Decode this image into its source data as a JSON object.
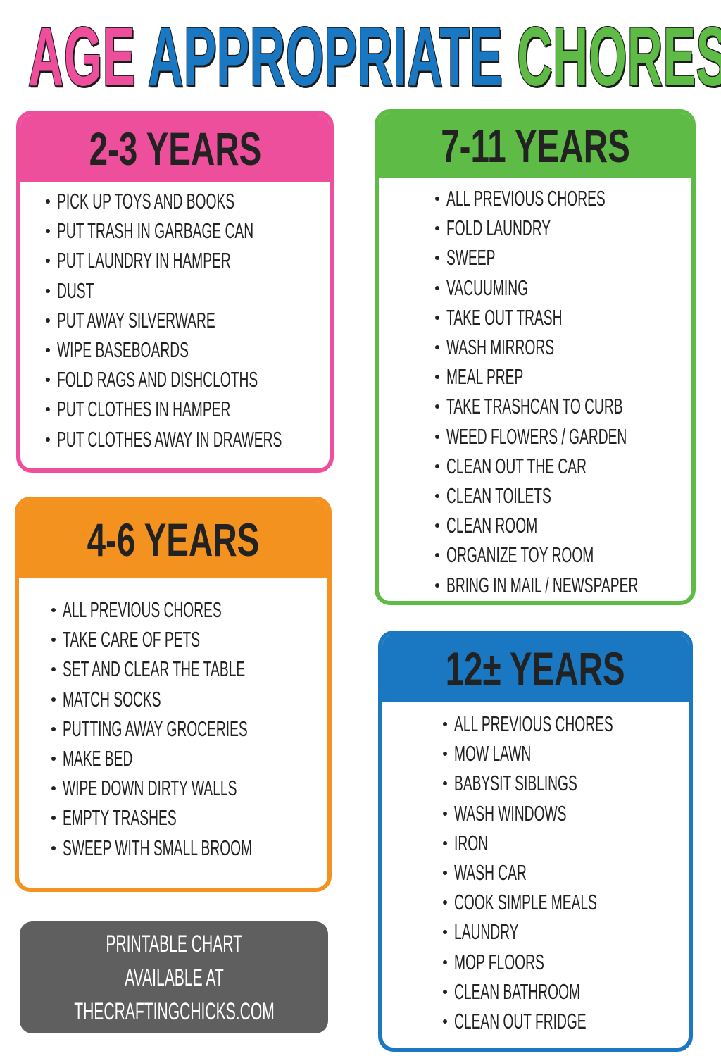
{
  "title": {
    "word1": "AGE",
    "word2": "APPROPRIATE",
    "word3": "CHORES",
    "colors": [
      "#ee4f9d",
      "#1a78c2",
      "#5dbb46"
    ]
  },
  "cards": [
    {
      "heading": "2-3 YEARS",
      "color": "#ee4f9d",
      "items": [
        "Pick up toys and books",
        "Put trash in garbage can",
        "Put laundry in hamper",
        "Dust",
        "Put away silverware",
        "Wipe baseboards",
        "Fold rags and dishcloths",
        "Put clothes in hamper",
        "Put clothes away in drawers"
      ]
    },
    {
      "heading": "4-6 YEARS",
      "color": "#f4921f",
      "items": [
        "All previous chores",
        "Take care of pets",
        "Set and clear the table",
        "Match socks",
        "Putting away groceries",
        "Make bed",
        "Wipe down dirty walls",
        "Empty trashes",
        "Sweep with small broom"
      ]
    },
    {
      "heading": "7-11 YEARS",
      "color": "#5dbb46",
      "items": [
        "All previous chores",
        "Fold laundry",
        "Sweep",
        "Vacuuming",
        "Take out trash",
        "Wash mirrors",
        "Meal prep",
        "Take trashcan to curb",
        "Weed flowers / garden",
        "Clean out the car",
        "Clean toilets",
        "Clean room",
        "Organize toy room",
        "Bring in mail / newspaper"
      ]
    },
    {
      "heading": "12± YEARS",
      "color": "#1a78c2",
      "items": [
        "All previous chores",
        "Mow lawn",
        "Babysit siblings",
        "Wash windows",
        "Iron",
        "Wash car",
        "Cook simple meals",
        "Laundry",
        "Mop floors",
        "Clean bathroom",
        "Clean out fridge"
      ]
    }
  ],
  "promo": {
    "line1": "PRINTABLE CHART",
    "line2": "AVAILABLE AT",
    "line3": "THECRAFTINGCHICKS.COM",
    "color": "#5f5f5f"
  }
}
